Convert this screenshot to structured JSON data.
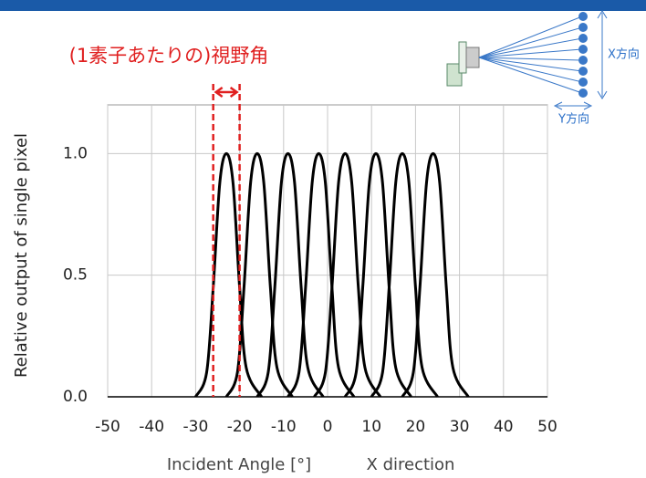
{
  "chart_data": {
    "type": "line",
    "title": "(1素子あたりの)視野角",
    "ylabel": "Relative output of single pixel",
    "xlabel": "Incident Angle [°]",
    "xnote": "X direction",
    "diagram_labels": {
      "x_dir": "X方向",
      "y_dir": "Y方向"
    },
    "color": "#000000",
    "fov_color": "#e02020",
    "fov_lines": [
      -26,
      -20
    ],
    "xlim": [
      -50,
      50
    ],
    "ylim": [
      0,
      1.2
    ],
    "xticks": [
      -50,
      -40,
      -30,
      -20,
      -10,
      0,
      10,
      20,
      30,
      40,
      50
    ],
    "yticks": [
      {
        "value": 0,
        "label": "0.0"
      },
      {
        "value": 0.5,
        "label": "0.5"
      },
      {
        "value": 1,
        "label": "1.0"
      }
    ],
    "grid": true,
    "series": [
      {
        "x": [
          -30,
          -27.5,
          -26,
          -24.5,
          -23,
          -21.5,
          -20,
          -18.5,
          -15
        ],
        "values": [
          0,
          0.1,
          0.45,
          0.88,
          1,
          0.88,
          0.45,
          0.12,
          0
        ]
      },
      {
        "x": [
          -23,
          -20.5,
          -19,
          -17.5,
          -16,
          -14.5,
          -13,
          -11.5,
          -8
        ],
        "values": [
          0,
          0.1,
          0.45,
          0.88,
          1,
          0.88,
          0.45,
          0.12,
          0
        ]
      },
      {
        "x": [
          -16,
          -13.5,
          -12,
          -10.5,
          -9,
          -7.5,
          -6,
          -4.5,
          -1
        ],
        "values": [
          0,
          0.1,
          0.45,
          0.88,
          1,
          0.88,
          0.45,
          0.12,
          0
        ]
      },
      {
        "x": [
          -9,
          -6.5,
          -5,
          -3.5,
          -2,
          -0.5,
          1,
          2.5,
          6
        ],
        "values": [
          0,
          0.1,
          0.45,
          0.88,
          1,
          0.88,
          0.45,
          0.12,
          0
        ]
      },
      {
        "x": [
          -3,
          -0.5,
          1,
          2.5,
          4,
          5.5,
          7,
          8.5,
          12
        ],
        "values": [
          0,
          0.1,
          0.45,
          0.88,
          1,
          0.88,
          0.45,
          0.12,
          0
        ]
      },
      {
        "x": [
          4,
          6.5,
          8,
          9.5,
          11,
          12.5,
          14,
          15.5,
          19
        ],
        "values": [
          0,
          0.1,
          0.45,
          0.88,
          1,
          0.88,
          0.45,
          0.12,
          0
        ]
      },
      {
        "x": [
          10,
          12.5,
          14,
          15.5,
          17,
          18.5,
          20,
          21.5,
          25
        ],
        "values": [
          0,
          0.1,
          0.45,
          0.88,
          1,
          0.88,
          0.45,
          0.12,
          0
        ]
      },
      {
        "x": [
          17,
          19.5,
          21,
          22.5,
          24,
          25.5,
          27,
          28.5,
          32
        ],
        "values": [
          0,
          0.1,
          0.45,
          0.88,
          1,
          0.88,
          0.45,
          0.12,
          0
        ]
      }
    ]
  }
}
